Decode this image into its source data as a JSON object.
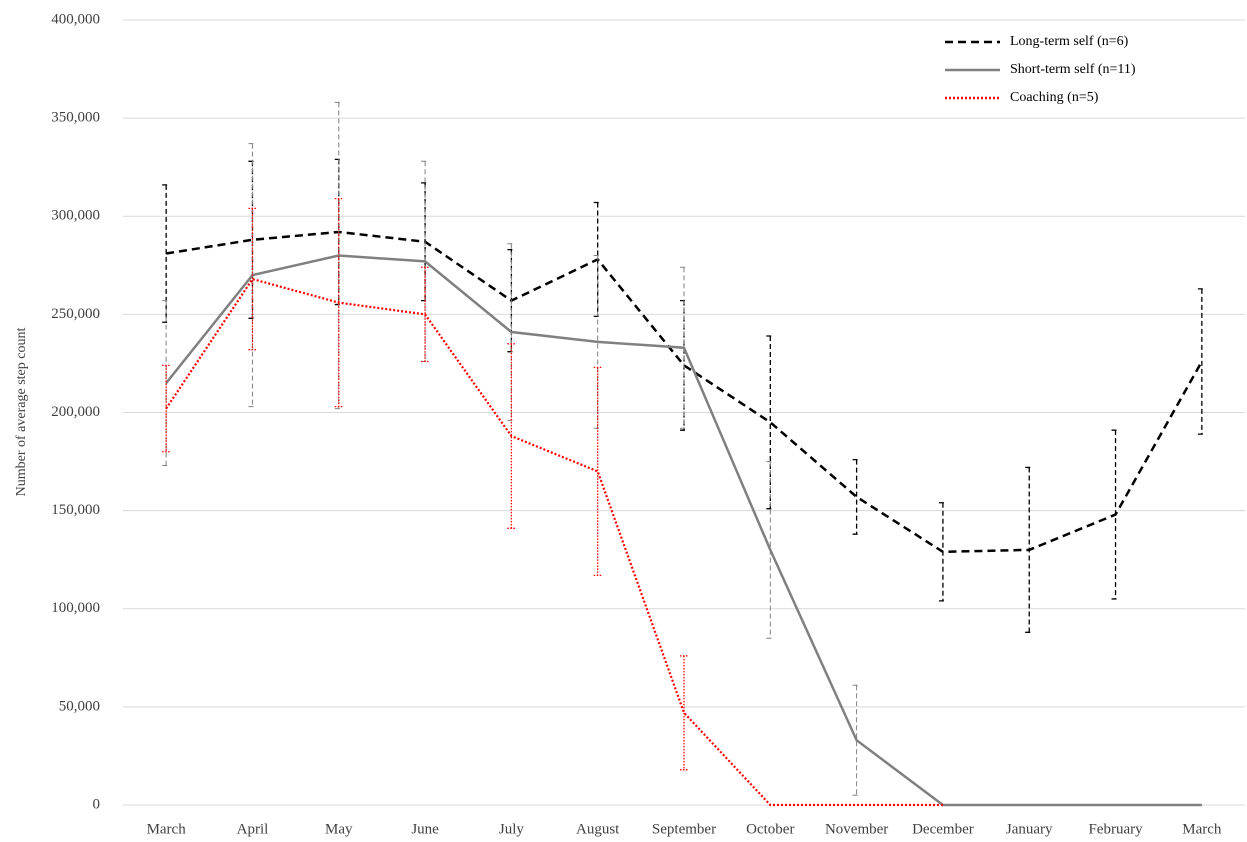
{
  "chart_data": {
    "type": "line",
    "y_label": "Number of average step count",
    "categories": [
      "March",
      "April",
      "May",
      "June",
      "July",
      "August",
      "September",
      "October",
      "November",
      "December",
      "January",
      "February",
      "March"
    ],
    "series": [
      {
        "name": "Long-term self (n=6)",
        "color": "#000000",
        "dash": "8,5",
        "values": [
          281000,
          288000,
          292000,
          287000,
          257000,
          278000,
          224000,
          195000,
          157000,
          129000,
          130000,
          148000,
          226000
        ],
        "errors": [
          35000,
          40000,
          37000,
          30000,
          26000,
          29000,
          33000,
          44000,
          19000,
          25000,
          42000,
          43000,
          37000
        ]
      },
      {
        "name": "Short-term self (n=11)",
        "color": "#808080",
        "dash": "none",
        "values": [
          215000,
          270000,
          280000,
          277000,
          241000,
          236000,
          233000,
          130000,
          33000,
          0,
          0,
          0,
          0
        ],
        "errors": [
          42000,
          67000,
          78000,
          51000,
          45000,
          44000,
          41000,
          45000,
          28000,
          null,
          null,
          null,
          null
        ]
      },
      {
        "name": "Coaching (n=5)",
        "color": "#ff0000",
        "dash": "2,2",
        "values": [
          202000,
          268000,
          256000,
          250000,
          188000,
          170000,
          47000,
          0,
          0,
          0,
          null,
          null,
          null
        ],
        "errors": [
          22000,
          36000,
          53000,
          24000,
          47000,
          53000,
          29000,
          null,
          null,
          null,
          null,
          null,
          null
        ]
      }
    ],
    "ylim": [
      0,
      400000
    ],
    "yticks": [
      {
        "value": 0,
        "label": "0"
      },
      {
        "value": 50000,
        "label": "50,000"
      },
      {
        "value": 100000,
        "label": "100,000"
      },
      {
        "value": 150000,
        "label": "150,000"
      },
      {
        "value": 200000,
        "label": "200,000"
      },
      {
        "value": 250000,
        "label": "250,000"
      },
      {
        "value": 300000,
        "label": "300,000"
      },
      {
        "value": 350000,
        "label": "350,000"
      },
      {
        "value": 400000,
        "label": "400,000"
      }
    ],
    "grid": true,
    "legend": "top-right"
  }
}
